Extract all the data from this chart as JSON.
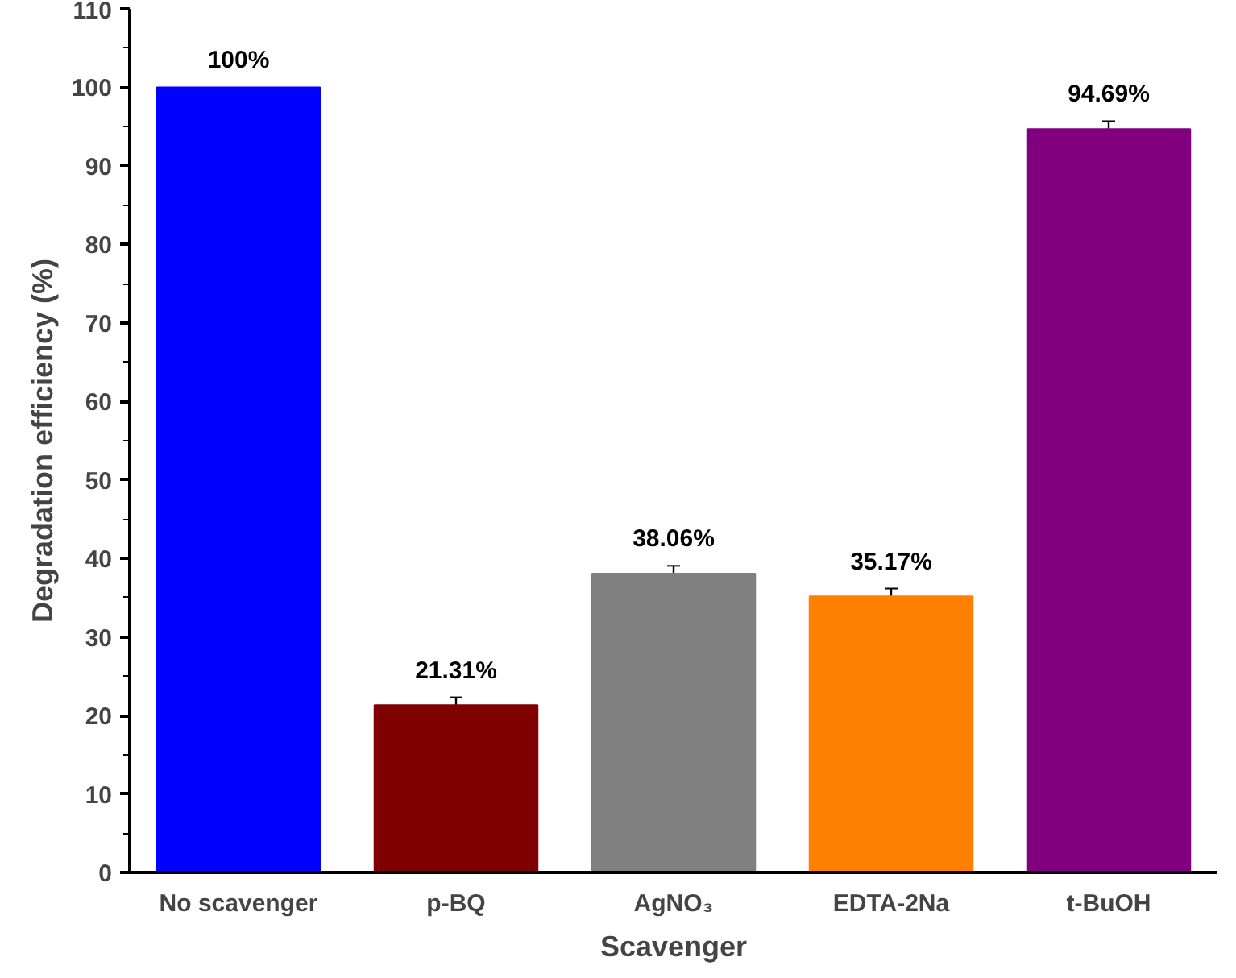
{
  "chart_data": {
    "type": "bar",
    "xlabel": "Scavenger",
    "ylabel": "Degradation efficiency (%)",
    "categories": [
      "No scavenger",
      "p-BQ",
      "AgNO₃",
      "EDTA-2Na",
      "t-BuOH"
    ],
    "values": [
      100,
      21.31,
      38.06,
      35.17,
      94.69
    ],
    "colors": [
      "#0000ff",
      "#7f0000",
      "#808080",
      "#ff8000",
      "#800080"
    ],
    "errors": [
      null,
      1,
      1,
      1,
      1
    ],
    "value_labels": [
      "100%",
      "21.31%",
      "38.06%",
      "35.17%",
      "94.69%"
    ],
    "ylim": [
      0,
      110
    ],
    "yticks": [
      0,
      10,
      20,
      30,
      40,
      50,
      60,
      70,
      80,
      90,
      100,
      110
    ],
    "grid": false
  }
}
